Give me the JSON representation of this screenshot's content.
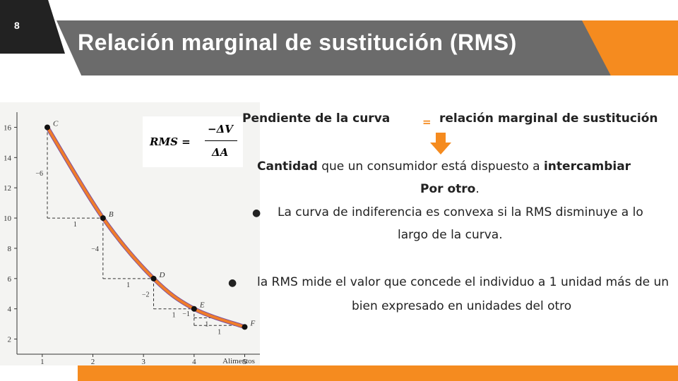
{
  "slide": {
    "number": "8",
    "title": "Relación marginal de sustitución (RMS)"
  },
  "formula": {
    "lhs": "RMS =",
    "numerator": "−ΔV",
    "denominator": "ΔA"
  },
  "text": {
    "line1_left": "Pendiente de la curva",
    "eq": "=",
    "line1_right": "relación marginal de sustitución",
    "line2_bold1": "Cantidad",
    "line2_mid": " que un consumidor está dispuesto a ",
    "line2_bold2": "intercambiar",
    "line3_bold": "Por otro",
    "line3_end": ".",
    "bullet1_a": "La curva de indiferencia es convexa si la RMS disminuye a lo",
    "bullet1_b": "largo de la curva.",
    "bullet2_a": "la RMS mide el valor que concede el individuo a 1 unidad más de un",
    "bullet2_b": "bien expresado en unidades del otro",
    "bullet_symbol": "●"
  },
  "colors": {
    "accent": "#f58b1f",
    "band": "#6b6b6b",
    "curve": "#f07d2a",
    "curve_under": "#7b4fa0"
  },
  "icons": {
    "arrow": "arrow-down-icon"
  },
  "chart_data": {
    "type": "line",
    "xlabel": "Alimentos",
    "ylabel": "",
    "xlim": [
      0.5,
      5.3
    ],
    "ylim": [
      1,
      17
    ],
    "x_ticks": [
      1,
      2,
      3,
      4,
      5
    ],
    "y_ticks": [
      2,
      4,
      6,
      8,
      10,
      12,
      14,
      16
    ],
    "grid": false,
    "points": [
      {
        "label": "C",
        "x": 1.1,
        "y": 16
      },
      {
        "label": "B",
        "x": 2.2,
        "y": 10
      },
      {
        "label": "D",
        "x": 3.2,
        "y": 6
      },
      {
        "label": "E",
        "x": 4.0,
        "y": 4
      },
      {
        "label": "F",
        "x": 5.0,
        "y": 2.8
      }
    ],
    "steps": [
      {
        "from": [
          1.1,
          16
        ],
        "dy_label": "−6",
        "dx_label": "1"
      },
      {
        "from": [
          2.2,
          10
        ],
        "dy_label": "−4",
        "dx_label": "1"
      },
      {
        "from": [
          3.2,
          6
        ],
        "dy_label": "−2",
        "dx_label": "1"
      },
      {
        "from": [
          4.0,
          4
        ],
        "dy_label": "−1",
        "dx_label": "1"
      },
      {
        "from": [
          4.0,
          3.4
        ],
        "dy_label": "",
        "dx_label": "1"
      }
    ]
  }
}
